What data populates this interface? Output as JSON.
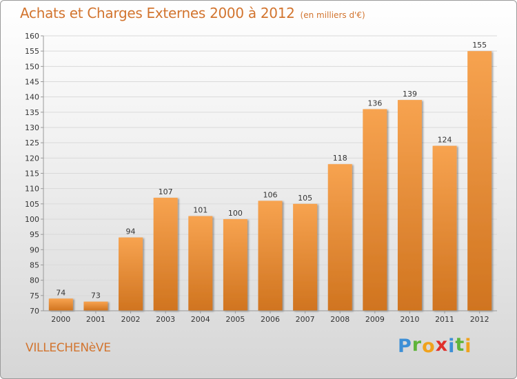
{
  "header": {
    "title": "Achats et Charges Externes 2000 à 2012",
    "unit": "(en milliers d'€)"
  },
  "footer": {
    "commune": "VILLECHENèVE",
    "logo_letters": [
      {
        "char": "P",
        "color": "#3d8fd6"
      },
      {
        "char": "r",
        "color": "#5fb43a"
      },
      {
        "char": "o",
        "color": "#f0a21c"
      },
      {
        "char": "x",
        "color": "#e0302a"
      },
      {
        "char": "i",
        "color": "#3d8fd6"
      },
      {
        "char": "t",
        "color": "#5fb43a"
      },
      {
        "char": "i",
        "color": "#f0a21c"
      }
    ]
  },
  "colors": {
    "bar_top": "#f7a350",
    "bar_bottom": "#d0741f",
    "grid": "#d9d9d9",
    "axis": "#999999"
  },
  "chart_data": {
    "type": "bar",
    "title": "Achats et Charges Externes 2000 à 2012",
    "subtitle": "(en milliers d'€)",
    "categories": [
      "2000",
      "2001",
      "2002",
      "2003",
      "2004",
      "2005",
      "2006",
      "2007",
      "2008",
      "2009",
      "2010",
      "2011",
      "2012"
    ],
    "values": [
      74,
      73,
      94,
      107,
      101,
      100,
      106,
      105,
      118,
      136,
      139,
      124,
      155
    ],
    "ylim": [
      70,
      160
    ],
    "yticks": [
      70,
      75,
      80,
      85,
      90,
      95,
      100,
      105,
      110,
      115,
      120,
      125,
      130,
      135,
      140,
      145,
      150,
      155,
      160
    ],
    "grid": true,
    "legend": "none"
  }
}
